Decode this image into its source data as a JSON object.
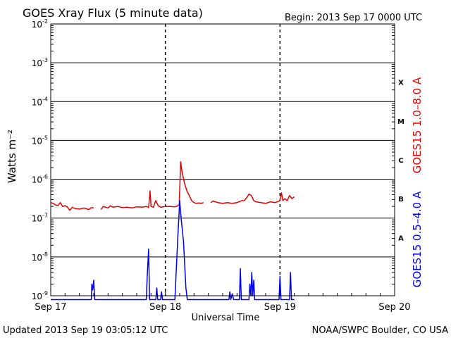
{
  "header": {
    "title": "GOES Xray Flux (5 minute data)",
    "begin": "Begin:  2013 Sep 17 0000 UTC"
  },
  "footer": {
    "updated": "Updated 2013 Sep 19 03:05:12 UTC",
    "source": "NOAA/SWPC Boulder, CO USA"
  },
  "colors": {
    "long_channel": "#e00000",
    "short_channel": "#0000ee",
    "axes": "#000000"
  },
  "chart_data": {
    "type": "line",
    "title": "GOES Xray Flux (5 minute data)",
    "xlabel": "Universal Time",
    "ylabel": "Watts m⁻²",
    "y_scale": "log",
    "ylim": [
      1e-09,
      0.01
    ],
    "xlim": [
      "2013-09-17 00:00",
      "2013-09-20 00:00"
    ],
    "x_ticks": [
      {
        "t": 0,
        "label": "Sep 17"
      },
      {
        "t": 24,
        "label": "Sep 18"
      },
      {
        "t": 48,
        "label": "Sep 19"
      },
      {
        "t": 72,
        "label": "Sep 20"
      }
    ],
    "y_ticks": [
      {
        "exp": -9,
        "base": "10",
        "power": "-9"
      },
      {
        "exp": -8,
        "base": "10",
        "power": "-8"
      },
      {
        "exp": -7,
        "base": "10",
        "power": "-7"
      },
      {
        "exp": -6,
        "base": "10",
        "power": "-6"
      },
      {
        "exp": -5,
        "base": "10",
        "power": "-5"
      },
      {
        "exp": -4,
        "base": "10",
        "power": "-4"
      },
      {
        "exp": -3,
        "base": "10",
        "power": "-3"
      },
      {
        "exp": -2,
        "base": "10",
        "power": "-2"
      }
    ],
    "grid": true,
    "flare_classes": [
      {
        "label": "A",
        "exp": -7.5
      },
      {
        "label": "B",
        "exp": -6.5
      },
      {
        "label": "C",
        "exp": -5.5
      },
      {
        "label": "M",
        "exp": -4.5
      },
      {
        "label": "X",
        "exp": -3.5
      }
    ],
    "series": [
      {
        "name": "GOES15 1.0–8.0 A",
        "color": "#e00000",
        "segments": [
          [
            [
              0,
              -6.6
            ],
            [
              0.5,
              -6.62
            ],
            [
              1,
              -6.66
            ],
            [
              1.5,
              -6.68
            ],
            [
              2,
              -6.6
            ],
            [
              2.5,
              -6.7
            ],
            [
              3,
              -6.68
            ],
            [
              3.5,
              -6.72
            ],
            [
              4,
              -6.8
            ],
            [
              4.5,
              -6.72
            ],
            [
              5,
              -6.75
            ],
            [
              6,
              -6.77
            ],
            [
              7,
              -6.74
            ],
            [
              8,
              -6.78
            ],
            [
              8.5,
              -6.73
            ],
            [
              9,
              -6.74
            ]
          ],
          [
            [
              10.5,
              -6.78
            ],
            [
              11,
              -6.7
            ],
            [
              11.5,
              -6.72
            ],
            [
              12,
              -6.74
            ],
            [
              12.5,
              -6.68
            ],
            [
              13,
              -6.72
            ],
            [
              14,
              -6.7
            ],
            [
              15,
              -6.73
            ],
            [
              16,
              -6.72
            ],
            [
              17,
              -6.74
            ],
            [
              18,
              -6.71
            ],
            [
              19,
              -6.72
            ],
            [
              20,
              -6.7
            ],
            [
              20.5,
              -6.73
            ],
            [
              20.8,
              -6.3
            ],
            [
              21,
              -6.7
            ],
            [
              21.5,
              -6.72
            ],
            [
              22,
              -6.55
            ],
            [
              22.5,
              -6.68
            ],
            [
              23,
              -6.72
            ],
            [
              24,
              -6.7
            ],
            [
              25,
              -6.7
            ],
            [
              26,
              -6.71
            ],
            [
              26.5,
              -6.69
            ],
            [
              26.9,
              -6.65
            ],
            [
              27.2,
              -5.55
            ],
            [
              27.5,
              -5.82
            ],
            [
              28,
              -6.1
            ],
            [
              28.5,
              -6.3
            ],
            [
              29,
              -6.42
            ],
            [
              29.5,
              -6.55
            ],
            [
              30,
              -6.6
            ],
            [
              30.5,
              -6.62
            ],
            [
              31,
              -6.61
            ],
            [
              31.5,
              -6.62
            ],
            [
              32,
              -6.6
            ]
          ],
          [
            [
              33.5,
              -6.6
            ],
            [
              34,
              -6.56
            ],
            [
              35,
              -6.6
            ],
            [
              36,
              -6.62
            ],
            [
              37,
              -6.6
            ],
            [
              38,
              -6.62
            ],
            [
              39,
              -6.6
            ],
            [
              40,
              -6.55
            ],
            [
              40.5,
              -6.55
            ],
            [
              41,
              -6.48
            ],
            [
              41.5,
              -6.38
            ],
            [
              42,
              -6.42
            ],
            [
              42.5,
              -6.55
            ],
            [
              43,
              -6.58
            ],
            [
              44,
              -6.6
            ],
            [
              45,
              -6.62
            ],
            [
              46,
              -6.58
            ],
            [
              47,
              -6.6
            ],
            [
              48,
              -6.55
            ],
            [
              48.3,
              -6.35
            ],
            [
              48.6,
              -6.55
            ],
            [
              49,
              -6.5
            ],
            [
              49.5,
              -6.55
            ],
            [
              50,
              -6.42
            ],
            [
              50.5,
              -6.5
            ],
            [
              51,
              -6.45
            ]
          ]
        ]
      },
      {
        "name": "GOES15 0.5–4.0 A",
        "color": "#0000ee",
        "segments": [
          [
            [
              0,
              -9.1
            ],
            [
              8.5,
              -9.1
            ],
            [
              8.6,
              -8.7
            ],
            [
              8.8,
              -8.85
            ],
            [
              9,
              -8.6
            ],
            [
              9.2,
              -9.1
            ],
            [
              20,
              -9.1
            ],
            [
              20.2,
              -8.5
            ],
            [
              20.5,
              -7.8
            ],
            [
              20.7,
              -9.1
            ],
            [
              22,
              -9.1
            ],
            [
              22.2,
              -8.8
            ],
            [
              22.4,
              -9.1
            ],
            [
              23,
              -9.1
            ],
            [
              23.2,
              -8.9
            ],
            [
              23.4,
              -9.1
            ],
            [
              26,
              -9.1
            ],
            [
              26.6,
              -7.5
            ],
            [
              27,
              -6.55
            ],
            [
              27.3,
              -7.0
            ],
            [
              27.8,
              -7.6
            ],
            [
              28,
              -8.1
            ],
            [
              28.3,
              -8.8
            ],
            [
              28.6,
              -9.1
            ],
            [
              37.3,
              -9.1
            ],
            [
              37.5,
              -8.9
            ],
            [
              37.7,
              -9.1
            ],
            [
              38,
              -8.95
            ],
            [
              38.3,
              -9.1
            ],
            [
              39.5,
              -9.1
            ],
            [
              39.7,
              -8.3
            ],
            [
              39.9,
              -9.1
            ],
            [
              41.5,
              -9.1
            ],
            [
              41.7,
              -8.7
            ],
            [
              41.9,
              -9.0
            ],
            [
              42.1,
              -8.4
            ],
            [
              42.3,
              -9.0
            ],
            [
              42.5,
              -8.6
            ],
            [
              42.7,
              -9.1
            ],
            [
              47.8,
              -9.1
            ],
            [
              48,
              -8.5
            ],
            [
              48.2,
              -9.1
            ],
            [
              50,
              -9.1
            ],
            [
              50.2,
              -8.4
            ],
            [
              50.4,
              -9.1
            ],
            [
              51,
              -9.1
            ]
          ]
        ]
      }
    ]
  }
}
